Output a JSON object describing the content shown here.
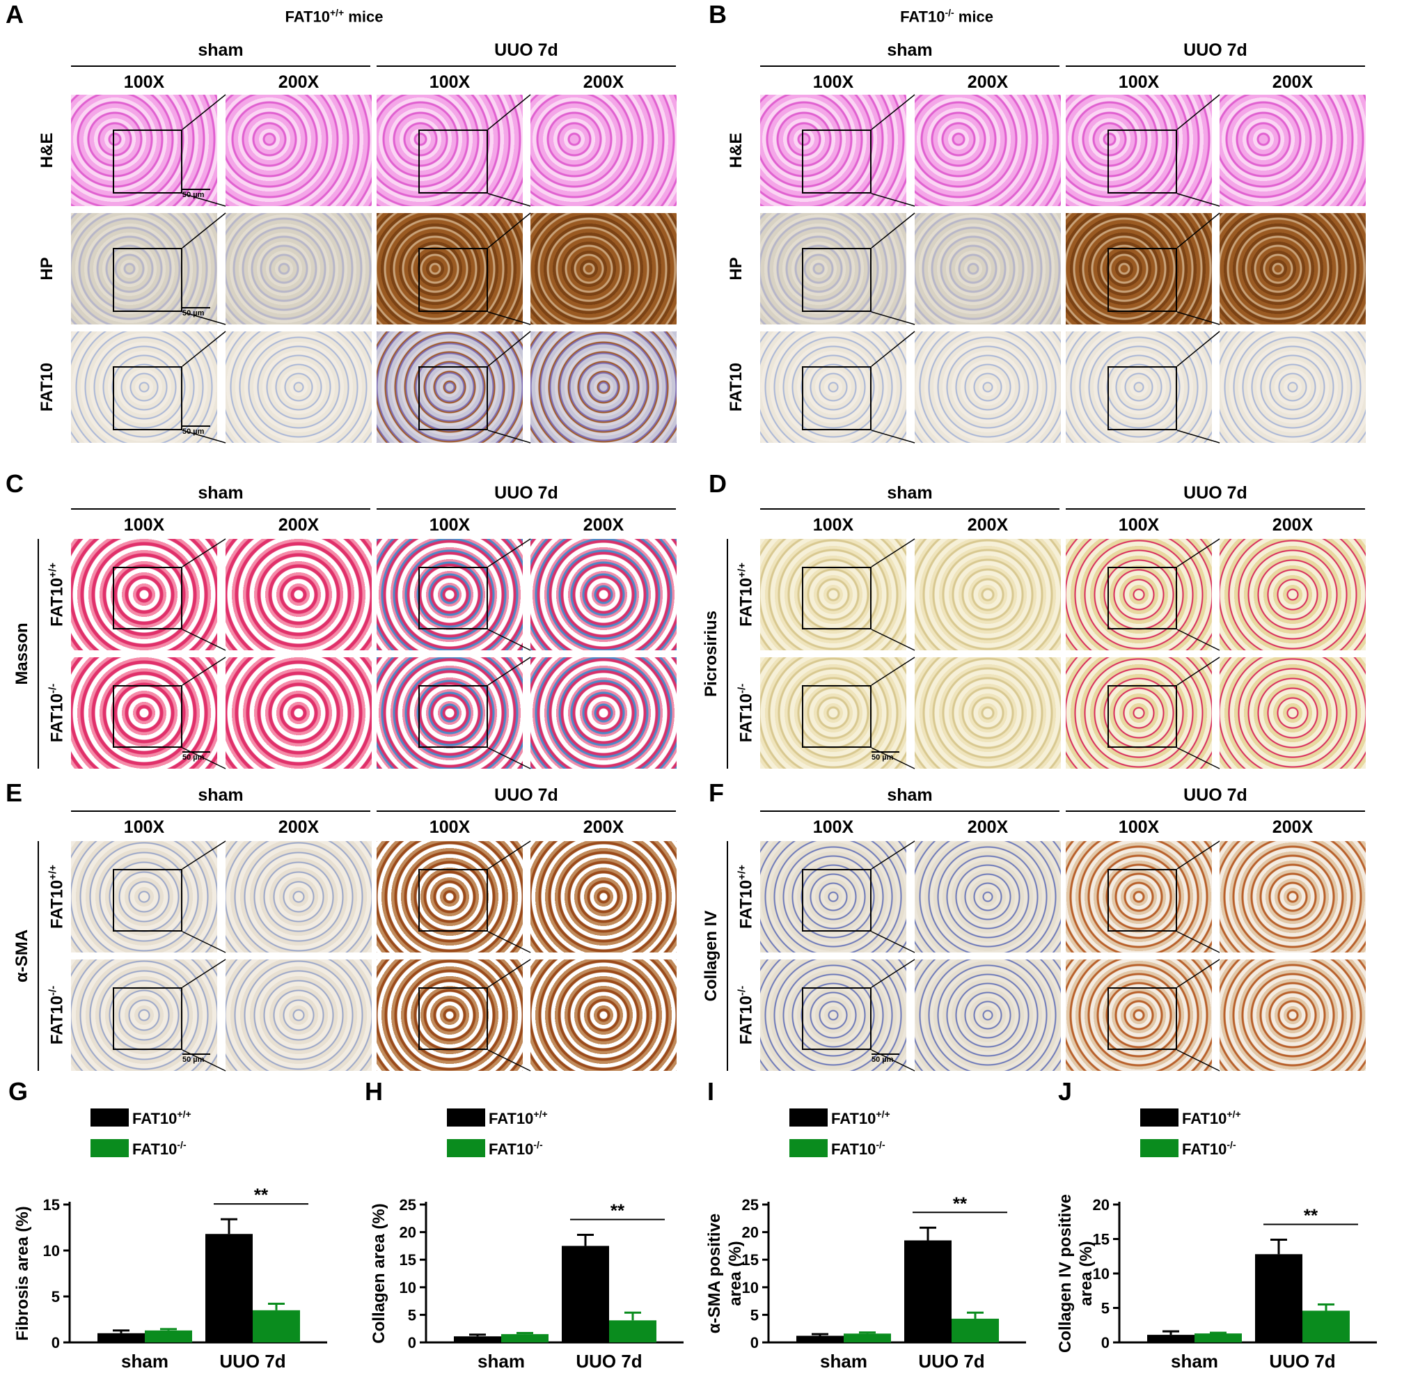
{
  "colors": {
    "wt": "#000000",
    "ko": "#0a8c1e"
  },
  "panels": {
    "A": {
      "letter": "A",
      "title_main": "FAT10",
      "title_sup": "+/+",
      "title_rest": " mice",
      "sham": "sham",
      "uuo": "UUO 7d",
      "mag100": "100X",
      "mag200": "200X",
      "rows": [
        "H&E",
        "HP",
        "FAT10"
      ],
      "scale": "50 µm"
    },
    "B": {
      "letter": "B",
      "title_main": "FAT10",
      "title_sup": "-/-",
      "title_rest": " mice",
      "sham": "sham",
      "uuo": "UUO 7d",
      "mag100": "100X",
      "mag200": "200X",
      "rows": [
        "H&E",
        "HP",
        "FAT10"
      ]
    },
    "C": {
      "letter": "C",
      "stain": "Masson",
      "sham": "sham",
      "uuo": "UUO 7d",
      "mag100": "100X",
      "mag200": "200X",
      "geno_main": "FAT10",
      "geno_wt": "+/+",
      "geno_ko": "-/-",
      "scale": "50 µm"
    },
    "D": {
      "letter": "D",
      "stain": "Picrosirius",
      "sham": "sham",
      "uuo": "UUO 7d",
      "mag100": "100X",
      "mag200": "200X",
      "geno_main": "FAT10",
      "geno_wt": "+/+",
      "geno_ko": "-/-",
      "scale": "50 µm"
    },
    "E": {
      "letter": "E",
      "stain": "α-SMA",
      "sham": "sham",
      "uuo": "UUO 7d",
      "mag100": "100X",
      "mag200": "200X",
      "geno_main": "FAT10",
      "geno_wt": "+/+",
      "geno_ko": "-/-",
      "scale": "50 µm"
    },
    "F": {
      "letter": "F",
      "stain": "Collagen IV",
      "sham": "sham",
      "uuo": "UUO 7d",
      "mag100": "100X",
      "mag200": "200X",
      "geno_main": "FAT10",
      "geno_wt": "+/+",
      "geno_ko": "-/-",
      "scale": "50 µm"
    }
  },
  "chart_data": [
    {
      "letter": "G",
      "type": "bar",
      "ylabel": [
        "Fibrosis area (%)"
      ],
      "categories": [
        "sham",
        "UUO 7d"
      ],
      "ylim": [
        0,
        15
      ],
      "yticks": [
        0,
        5,
        10,
        15
      ],
      "legend": {
        "main": "FAT10",
        "wt": "+/+",
        "ko": "-/-"
      },
      "series": [
        {
          "values": [
            1.0,
            11.8
          ],
          "errors": [
            0.3,
            1.6
          ]
        },
        {
          "values": [
            1.3,
            3.5
          ],
          "errors": [
            0.15,
            0.7
          ]
        }
      ],
      "significance": "**"
    },
    {
      "letter": "H",
      "type": "bar",
      "ylabel": [
        "Collagen area (%)"
      ],
      "categories": [
        "sham",
        "UUO 7d"
      ],
      "ylim": [
        0,
        25
      ],
      "yticks": [
        0,
        5,
        10,
        15,
        20,
        25
      ],
      "legend": {
        "main": "FAT10",
        "wt": "+/+",
        "ko": "-/-"
      },
      "series": [
        {
          "values": [
            1.1,
            17.5
          ],
          "errors": [
            0.3,
            2.0
          ]
        },
        {
          "values": [
            1.5,
            4.0
          ],
          "errors": [
            0.2,
            1.4
          ]
        }
      ],
      "significance": "**"
    },
    {
      "letter": "I",
      "type": "bar",
      "ylabel": [
        "α-SMA positive",
        "area (%)"
      ],
      "categories": [
        "sham",
        "UUO 7d"
      ],
      "ylim": [
        0,
        25
      ],
      "yticks": [
        0,
        5,
        10,
        15,
        20,
        25
      ],
      "legend": {
        "main": "FAT10",
        "wt": "+/+",
        "ko": "-/-"
      },
      "series": [
        {
          "values": [
            1.2,
            18.5
          ],
          "errors": [
            0.3,
            2.3
          ]
        },
        {
          "values": [
            1.6,
            4.3
          ],
          "errors": [
            0.2,
            1.1
          ]
        }
      ],
      "significance": "**"
    },
    {
      "letter": "J",
      "type": "bar",
      "ylabel": [
        "Collagen IV positive",
        "area (%)"
      ],
      "categories": [
        "sham",
        "UUO 7d"
      ],
      "ylim": [
        0,
        20
      ],
      "yticks": [
        0,
        5,
        10,
        15,
        20
      ],
      "legend": {
        "main": "FAT10",
        "wt": "+/+",
        "ko": "-/-"
      },
      "series": [
        {
          "values": [
            1.1,
            12.8
          ],
          "errors": [
            0.5,
            2.1
          ]
        },
        {
          "values": [
            1.3,
            4.6
          ],
          "errors": [
            0.1,
            0.9
          ]
        }
      ],
      "significance": "**"
    }
  ]
}
